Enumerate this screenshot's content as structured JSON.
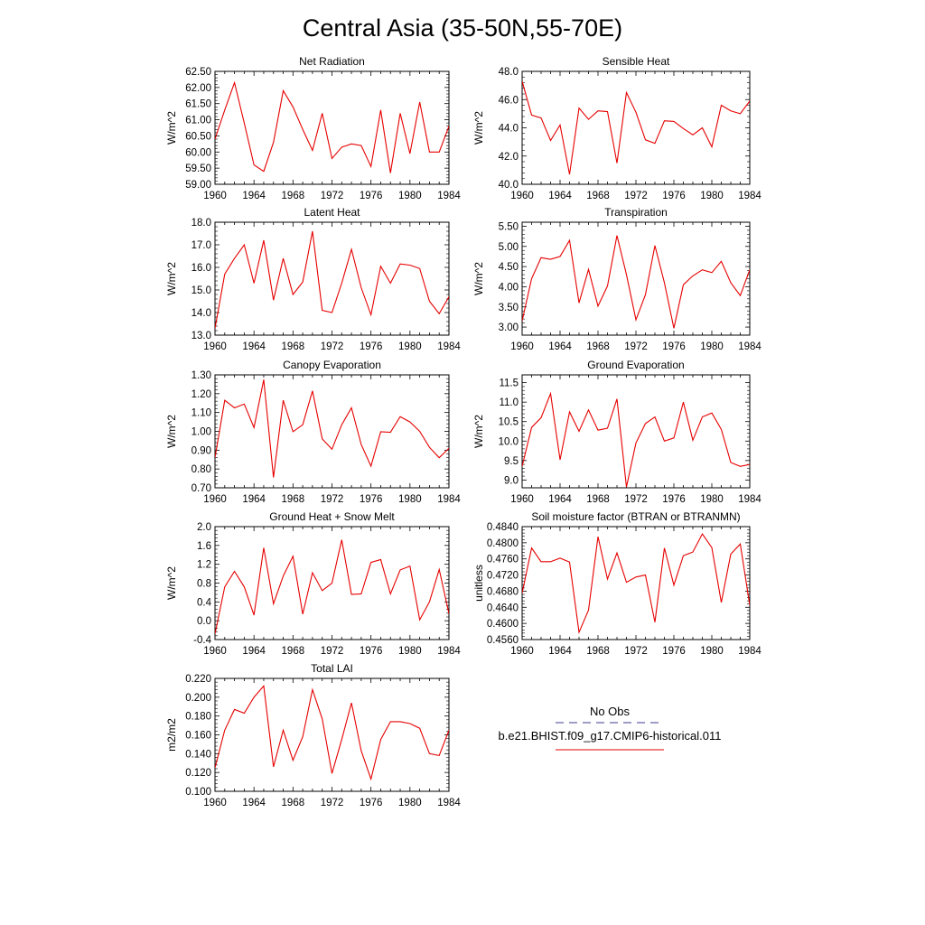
{
  "title": "Central Asia (35-50N,55-70E)",
  "legend": {
    "obs_label": "No Obs",
    "obs_color": "#3b3b8f",
    "model_label": "b.e21.BHIST.f09_g17.CMIP6-historical.011",
    "model_color": "#e60000"
  },
  "chart_data": [
    {
      "type": "line",
      "title": "Net Radiation",
      "ylabel": "W/m^2",
      "xlim": [
        1960,
        1984
      ],
      "ylim": [
        59.0,
        62.5
      ],
      "xticks": [
        "1960",
        "1964",
        "1968",
        "1972",
        "1976",
        "1980",
        "1984"
      ],
      "yticks": [
        "59.00",
        "59.50",
        "60.00",
        "60.50",
        "61.00",
        "61.50",
        "62.00",
        "62.50"
      ],
      "x": [
        1960,
        1961,
        1962,
        1963,
        1964,
        1965,
        1966,
        1967,
        1968,
        1969,
        1970,
        1971,
        1972,
        1973,
        1974,
        1975,
        1976,
        1977,
        1978,
        1979,
        1980,
        1981,
        1982,
        1983,
        1984
      ],
      "series": [
        {
          "values": [
            60.4,
            61.3,
            62.15,
            60.9,
            59.6,
            59.4,
            60.3,
            61.9,
            61.4,
            60.7,
            60.05,
            61.2,
            59.8,
            60.15,
            60.25,
            60.2,
            59.55,
            61.3,
            59.35,
            61.2,
            59.95,
            61.55,
            60.0,
            60.0,
            60.8
          ]
        }
      ]
    },
    {
      "type": "line",
      "title": "Sensible Heat",
      "ylabel": "W/m^2",
      "xlim": [
        1960,
        1984
      ],
      "ylim": [
        40.0,
        48.0
      ],
      "xticks": [
        "1960",
        "1964",
        "1968",
        "1972",
        "1976",
        "1980",
        "1984"
      ],
      "yticks": [
        "40.0",
        "42.0",
        "44.0",
        "46.0",
        "48.0"
      ],
      "x": [
        1960,
        1961,
        1962,
        1963,
        1964,
        1965,
        1966,
        1967,
        1968,
        1969,
        1970,
        1971,
        1972,
        1973,
        1974,
        1975,
        1976,
        1977,
        1978,
        1979,
        1980,
        1981,
        1982,
        1983,
        1984
      ],
      "series": [
        {
          "values": [
            47.3,
            44.9,
            44.7,
            43.1,
            44.2,
            40.7,
            45.4,
            44.6,
            45.2,
            45.15,
            41.5,
            46.5,
            45.1,
            43.15,
            42.9,
            44.5,
            44.45,
            43.95,
            43.5,
            44.0,
            42.65,
            45.6,
            45.2,
            45.0,
            45.9
          ]
        }
      ]
    },
    {
      "type": "line",
      "title": "Latent Heat",
      "ylabel": "W/m^2",
      "xlim": [
        1960,
        1984
      ],
      "ylim": [
        13.0,
        18.0
      ],
      "xticks": [
        "1960",
        "1964",
        "1968",
        "1972",
        "1976",
        "1980",
        "1984"
      ],
      "yticks": [
        "13.0",
        "14.0",
        "15.0",
        "16.0",
        "17.0",
        "18.0"
      ],
      "x": [
        1960,
        1961,
        1962,
        1963,
        1964,
        1965,
        1966,
        1967,
        1968,
        1969,
        1970,
        1971,
        1972,
        1973,
        1974,
        1975,
        1976,
        1977,
        1978,
        1979,
        1980,
        1981,
        1982,
        1983,
        1984
      ],
      "series": [
        {
          "values": [
            13.3,
            15.7,
            16.4,
            17.0,
            15.3,
            17.2,
            14.55,
            16.4,
            14.8,
            15.35,
            17.6,
            14.1,
            14.0,
            15.3,
            16.8,
            15.1,
            13.9,
            16.05,
            15.3,
            16.15,
            16.1,
            15.95,
            14.5,
            13.95,
            14.7
          ]
        }
      ]
    },
    {
      "type": "line",
      "title": "Transpiration",
      "ylabel": "W/m^2",
      "xlim": [
        1960,
        1984
      ],
      "ylim": [
        2.8,
        5.6
      ],
      "xticks": [
        "1960",
        "1964",
        "1968",
        "1972",
        "1976",
        "1980",
        "1984"
      ],
      "yticks": [
        "3.00",
        "3.50",
        "4.00",
        "4.50",
        "5.00",
        "5.50"
      ],
      "x": [
        1960,
        1961,
        1962,
        1963,
        1964,
        1965,
        1966,
        1967,
        1968,
        1969,
        1970,
        1971,
        1972,
        1973,
        1974,
        1975,
        1976,
        1977,
        1978,
        1979,
        1980,
        1981,
        1982,
        1983,
        1984
      ],
      "series": [
        {
          "values": [
            3.15,
            4.2,
            4.72,
            4.68,
            4.75,
            5.15,
            3.6,
            4.43,
            3.52,
            4.02,
            5.27,
            4.3,
            3.18,
            3.8,
            5.02,
            4.1,
            2.97,
            4.05,
            4.27,
            4.42,
            4.35,
            4.63,
            4.1,
            3.78,
            4.42
          ]
        }
      ]
    },
    {
      "type": "line",
      "title": "Canopy Evaporation",
      "ylabel": "W/m^2",
      "xlim": [
        1960,
        1984
      ],
      "ylim": [
        0.7,
        1.3
      ],
      "xticks": [
        "1960",
        "1964",
        "1968",
        "1972",
        "1976",
        "1980",
        "1984"
      ],
      "yticks": [
        "0.70",
        "0.80",
        "0.90",
        "1.00",
        "1.10",
        "1.20",
        "1.30"
      ],
      "x": [
        1960,
        1961,
        1962,
        1963,
        1964,
        1965,
        1966,
        1967,
        1968,
        1969,
        1970,
        1971,
        1972,
        1973,
        1974,
        1975,
        1976,
        1977,
        1978,
        1979,
        1980,
        1981,
        1982,
        1983,
        1984
      ],
      "series": [
        {
          "values": [
            0.86,
            1.165,
            1.125,
            1.145,
            1.02,
            1.275,
            0.755,
            1.165,
            0.998,
            1.035,
            1.215,
            0.96,
            0.905,
            1.035,
            1.125,
            0.93,
            0.815,
            0.998,
            0.995,
            1.078,
            1.05,
            1.0,
            0.915,
            0.86,
            0.91
          ]
        }
      ]
    },
    {
      "type": "line",
      "title": "Ground Evaporation",
      "ylabel": "W/m^2",
      "xlim": [
        1960,
        1984
      ],
      "ylim": [
        8.8,
        11.7
      ],
      "xticks": [
        "1960",
        "1964",
        "1968",
        "1972",
        "1976",
        "1980",
        "1984"
      ],
      "yticks": [
        "9.0",
        "9.5",
        "10.0",
        "10.5",
        "11.0",
        "11.5"
      ],
      "x": [
        1960,
        1961,
        1962,
        1963,
        1964,
        1965,
        1966,
        1967,
        1968,
        1969,
        1970,
        1971,
        1972,
        1973,
        1974,
        1975,
        1976,
        1977,
        1978,
        1979,
        1980,
        1981,
        1982,
        1983,
        1984
      ],
      "series": [
        {
          "values": [
            9.35,
            10.35,
            10.6,
            11.22,
            9.52,
            10.75,
            10.25,
            10.8,
            10.28,
            10.33,
            11.08,
            8.82,
            9.95,
            10.45,
            10.62,
            10.0,
            10.08,
            11.0,
            10.02,
            10.62,
            10.72,
            10.3,
            9.45,
            9.35,
            9.4
          ]
        }
      ]
    },
    {
      "type": "line",
      "title": "Ground Heat + Snow Melt",
      "ylabel": "W/m^2",
      "xlim": [
        1960,
        1984
      ],
      "ylim": [
        -0.4,
        2.0
      ],
      "xticks": [
        "1960",
        "1964",
        "1968",
        "1972",
        "1976",
        "1980",
        "1984"
      ],
      "yticks": [
        "-0.4",
        "0.0",
        "0.4",
        "0.8",
        "1.2",
        "1.6",
        "2.0"
      ],
      "x": [
        1960,
        1961,
        1962,
        1963,
        1964,
        1965,
        1966,
        1967,
        1968,
        1969,
        1970,
        1971,
        1972,
        1973,
        1974,
        1975,
        1976,
        1977,
        1978,
        1979,
        1980,
        1981,
        1982,
        1983,
        1984
      ],
      "series": [
        {
          "values": [
            -0.28,
            0.72,
            1.05,
            0.72,
            0.12,
            1.55,
            0.36,
            0.95,
            1.37,
            0.14,
            1.02,
            0.64,
            0.8,
            1.72,
            0.56,
            0.57,
            1.24,
            1.3,
            0.57,
            1.08,
            1.16,
            0.02,
            0.4,
            1.09,
            0.15
          ]
        }
      ]
    },
    {
      "type": "line",
      "title": "Soil moisture factor (BTRAN or BTRANMN)",
      "ylabel": "unitless",
      "xlim": [
        1960,
        1984
      ],
      "ylim": [
        0.456,
        0.484
      ],
      "xticks": [
        "1960",
        "1964",
        "1968",
        "1972",
        "1976",
        "1980",
        "1984"
      ],
      "yticks": [
        "0.4560",
        "0.4600",
        "0.4640",
        "0.4680",
        "0.4720",
        "0.4760",
        "0.4800",
        "0.4840"
      ],
      "x": [
        1960,
        1961,
        1962,
        1963,
        1964,
        1965,
        1966,
        1967,
        1968,
        1969,
        1970,
        1971,
        1972,
        1973,
        1974,
        1975,
        1976,
        1977,
        1978,
        1979,
        1980,
        1981,
        1982,
        1983,
        1984
      ],
      "series": [
        {
          "values": [
            0.4675,
            0.4787,
            0.4753,
            0.4753,
            0.4762,
            0.4752,
            0.4578,
            0.4633,
            0.4815,
            0.471,
            0.4775,
            0.4702,
            0.4715,
            0.472,
            0.4603,
            0.4787,
            0.4695,
            0.4768,
            0.4777,
            0.4822,
            0.4788,
            0.4652,
            0.4772,
            0.4797,
            0.4645
          ]
        }
      ]
    },
    {
      "type": "line",
      "title": "Total LAI",
      "ylabel": "m2/m2",
      "xlim": [
        1960,
        1984
      ],
      "ylim": [
        0.1,
        0.22
      ],
      "xticks": [
        "1960",
        "1964",
        "1968",
        "1972",
        "1976",
        "1980",
        "1984"
      ],
      "yticks": [
        "0.100",
        "0.120",
        "0.140",
        "0.160",
        "0.180",
        "0.200",
        "0.220"
      ],
      "x": [
        1960,
        1961,
        1962,
        1963,
        1964,
        1965,
        1966,
        1967,
        1968,
        1969,
        1970,
        1971,
        1972,
        1973,
        1974,
        1975,
        1976,
        1977,
        1978,
        1979,
        1980,
        1981,
        1982,
        1983,
        1984
      ],
      "series": [
        {
          "values": [
            0.125,
            0.165,
            0.187,
            0.183,
            0.2,
            0.212,
            0.126,
            0.165,
            0.133,
            0.158,
            0.208,
            0.177,
            0.119,
            0.155,
            0.194,
            0.143,
            0.113,
            0.155,
            0.174,
            0.174,
            0.172,
            0.167,
            0.14,
            0.138,
            0.165
          ]
        }
      ]
    }
  ]
}
